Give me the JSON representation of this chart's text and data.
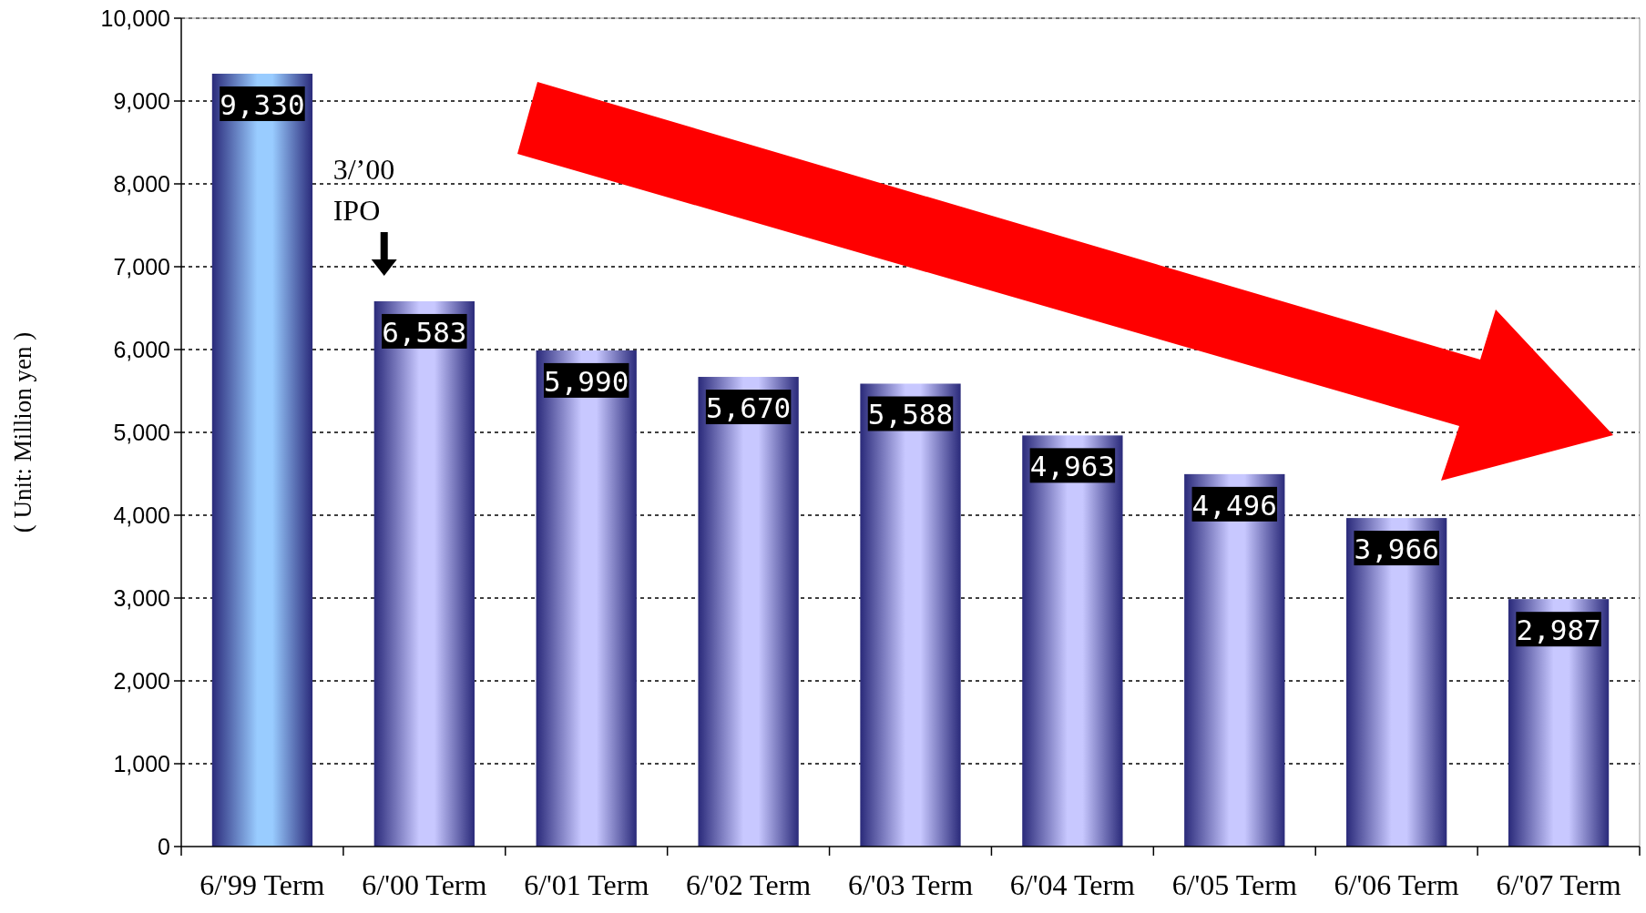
{
  "chart_data": {
    "type": "bar",
    "ylabel": "( Unit: Million yen )",
    "categories": [
      "6/'99 Term",
      "6/'00 Term",
      "6/'01 Term",
      "6/'02 Term",
      "6/'03 Term",
      "6/'04 Term",
      "6/'05 Term",
      "6/'06 Term",
      "6/'07 Term"
    ],
    "values": [
      9330,
      6583,
      5990,
      5670,
      5588,
      4963,
      4496,
      3966,
      2987
    ],
    "colors": [
      "#99ccff",
      "#c8c8ff",
      "#c8c8ff",
      "#c8c8ff",
      "#c8c8ff",
      "#c8c8ff",
      "#c8c8ff",
      "#c8c8ff",
      "#c8c8ff"
    ],
    "ylim": [
      0,
      10000
    ],
    "yticks": [
      {
        "value": 0,
        "label": "0"
      },
      {
        "value": 1000,
        "label": "1,000"
      },
      {
        "value": 2000,
        "label": "2,000"
      },
      {
        "value": 3000,
        "label": "3,000"
      },
      {
        "value": 4000,
        "label": "4,000"
      },
      {
        "value": 5000,
        "label": "5,000"
      },
      {
        "value": 6000,
        "label": "6,000"
      },
      {
        "value": 7000,
        "label": "7,000"
      },
      {
        "value": 8000,
        "label": "8,000"
      },
      {
        "value": 9000,
        "label": "9,000"
      },
      {
        "value": 10000,
        "label": "10,000"
      }
    ],
    "grid": "y",
    "value_labels": [
      "9,330",
      "6,583",
      "5,990",
      "5,670",
      "5,588",
      "4,963",
      "4,496",
      "3,966",
      "2,987"
    ],
    "annotations": [
      {
        "text": "3/’00 IPO",
        "x": "6/'00 Term",
        "y": 6583
      }
    ]
  }
}
